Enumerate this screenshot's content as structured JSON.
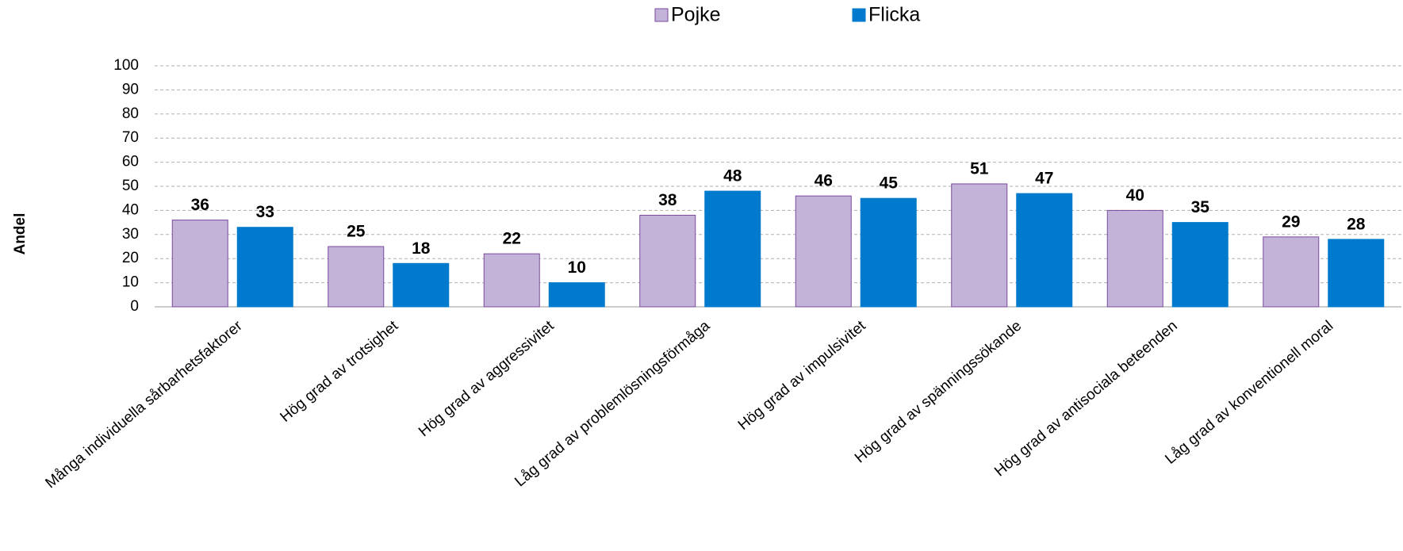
{
  "chart_data": {
    "type": "bar",
    "categories": [
      "Många individuella sårbarhetsfaktorer",
      "Hög grad av trotsighet",
      "Hög grad av aggressivitet",
      "Låg grad av problemlösningsförmåga",
      "Hög grad av impulsivitet",
      "Hög grad av spänningssökande",
      "Hög grad av antisociala beteenden",
      "Låg grad av konventionell moral"
    ],
    "series": [
      {
        "name": "Pojke",
        "color": "#c3b3d9",
        "values": [
          36,
          25,
          22,
          38,
          46,
          51,
          40,
          29
        ]
      },
      {
        "name": "Flicka",
        "color": "#007acc",
        "values": [
          33,
          18,
          10,
          48,
          45,
          47,
          35,
          28
        ]
      }
    ],
    "y_label": "Andel",
    "ylim": [
      0,
      100
    ],
    "yticks": [
      0,
      10,
      20,
      30,
      40,
      50,
      60,
      70,
      80,
      90,
      100
    ],
    "grid": true,
    "legend": "top"
  }
}
